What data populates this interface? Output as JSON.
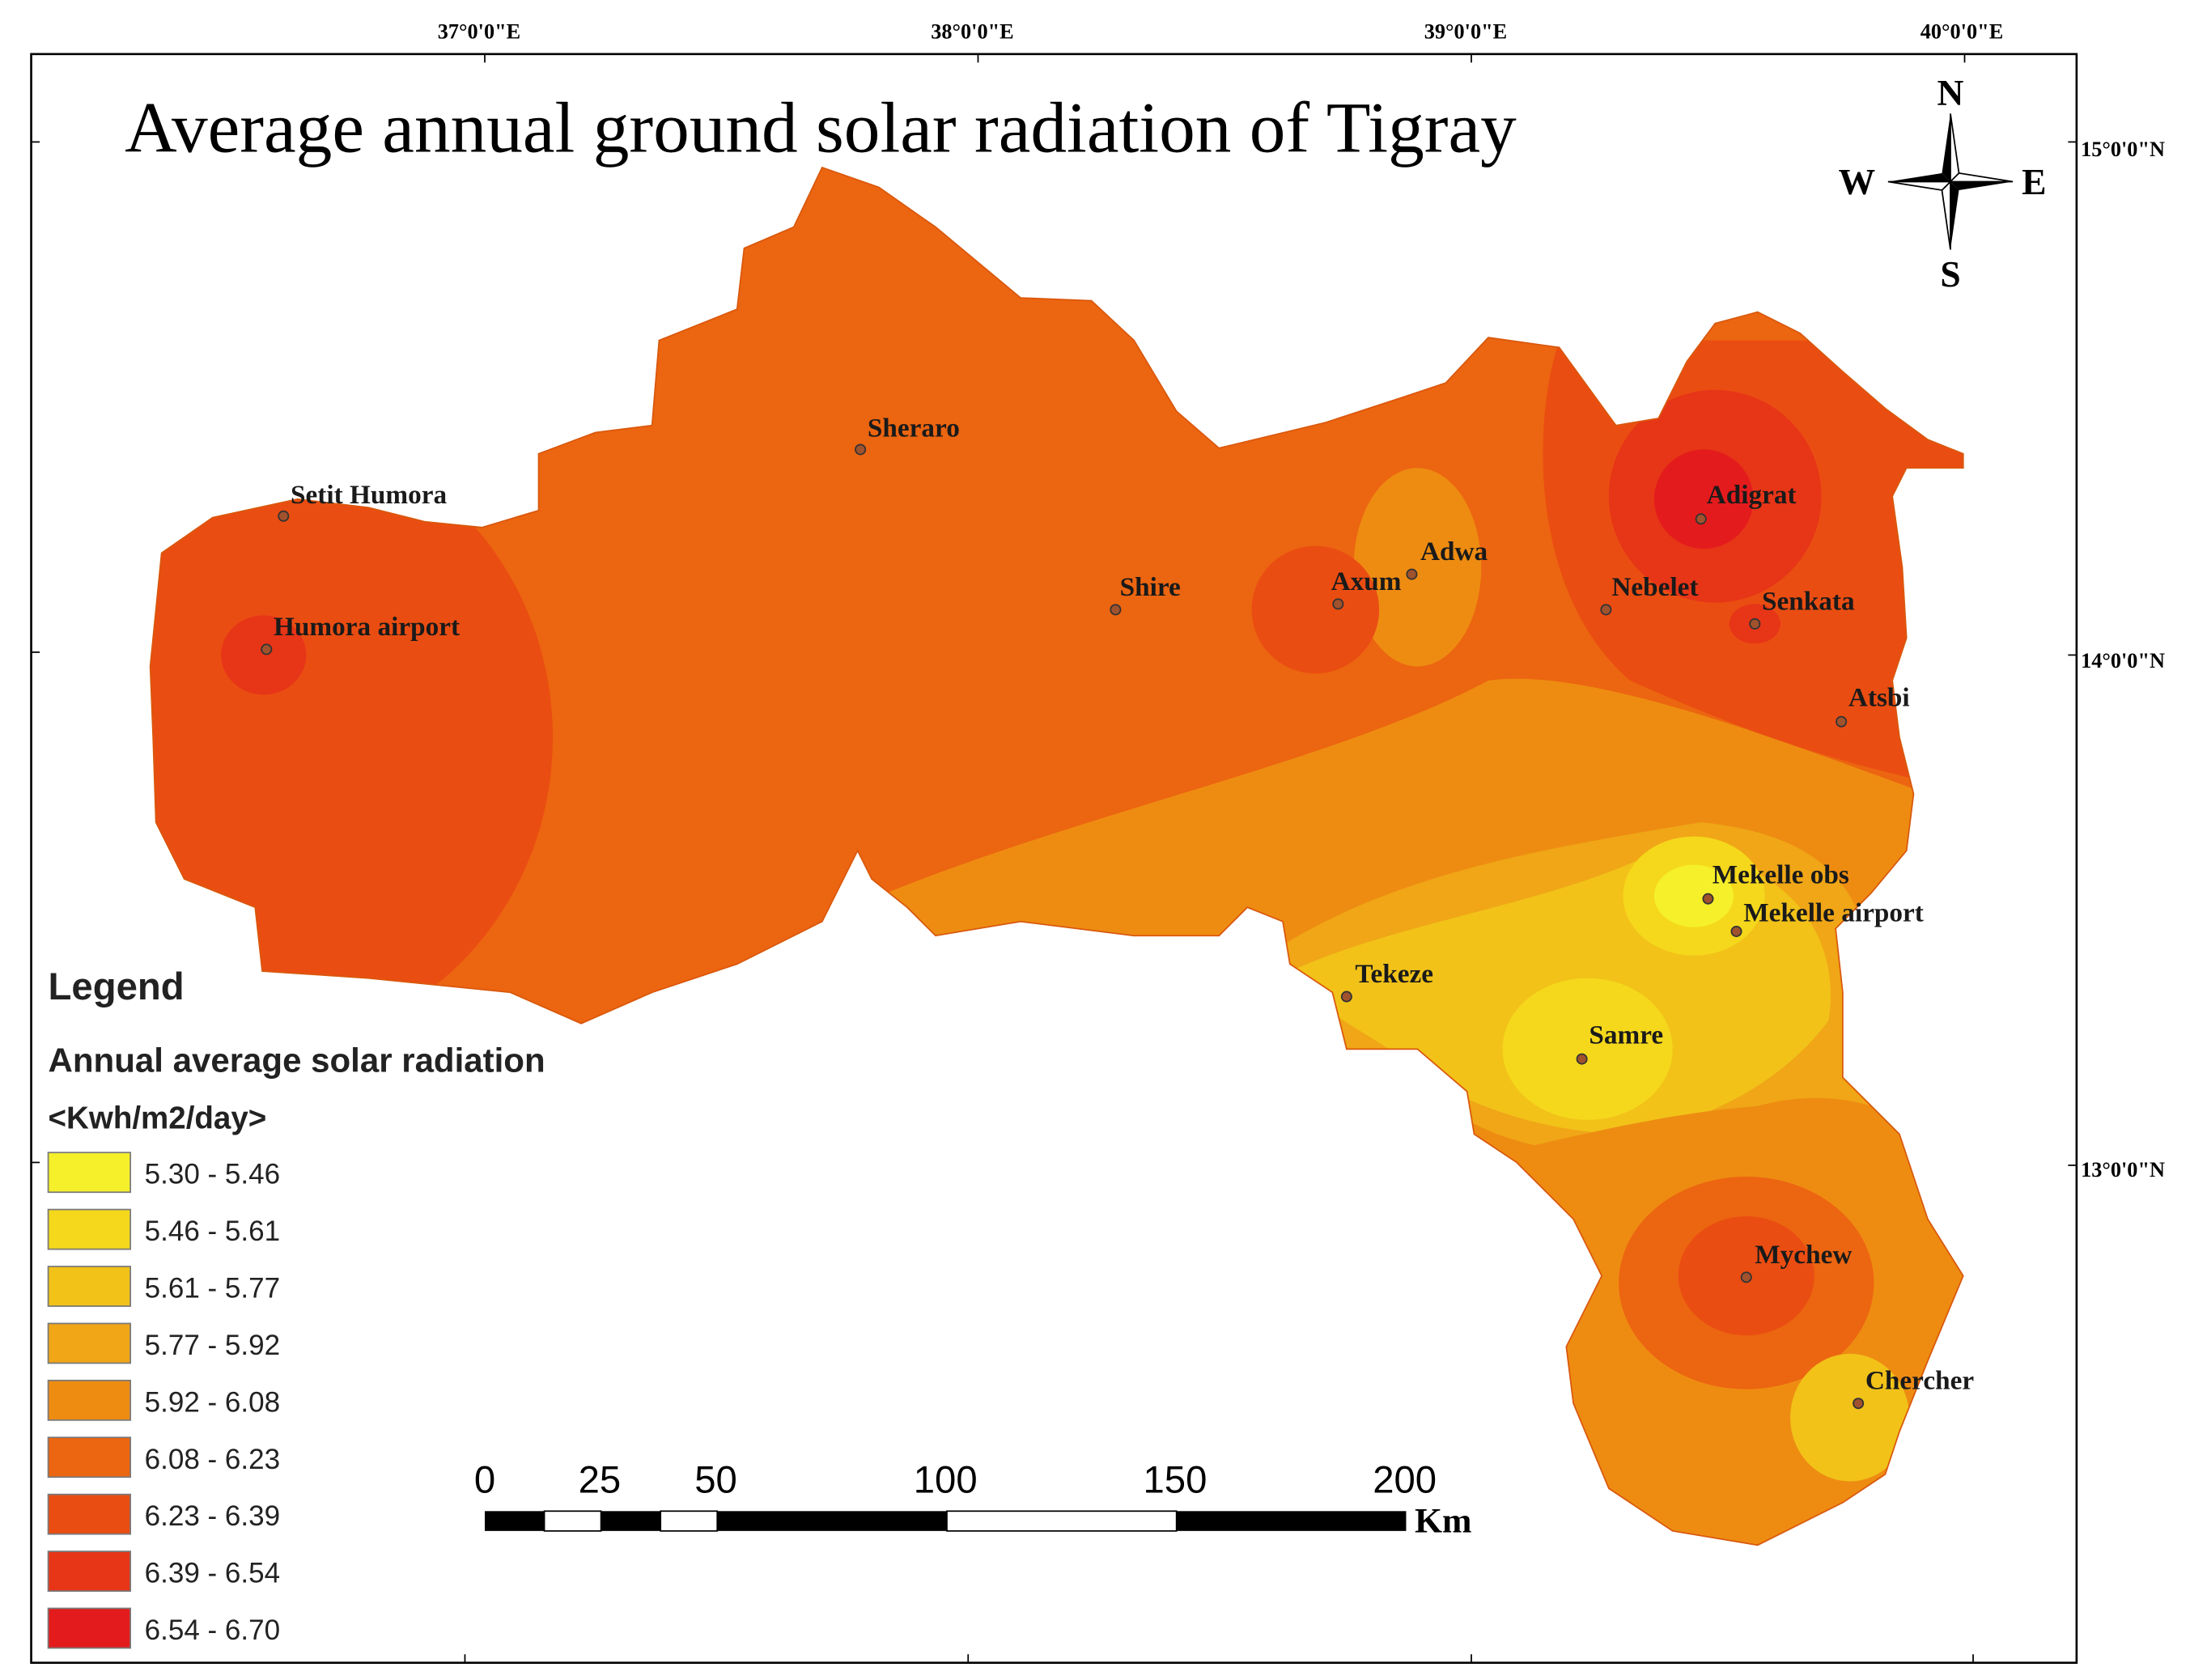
{
  "map": {
    "title": "Average annual ground solar radiation of Tigray",
    "top_ticks": [
      {
        "label": "37°0'0\"E"
      },
      {
        "label": "38°0'0\"E"
      },
      {
        "label": "39°0'0\"E"
      },
      {
        "label": "40°0'0\"E"
      }
    ],
    "right_ticks": [
      {
        "label": "15°0'0\"N"
      },
      {
        "label": "14°0'0\"N"
      },
      {
        "label": "13°0'0\"N"
      }
    ],
    "compass": {
      "n": "N",
      "s": "S",
      "e": "E",
      "w": "W"
    }
  },
  "stations": [
    {
      "name": "Sheraro"
    },
    {
      "name": "Setit Humora"
    },
    {
      "name": "Humora airport"
    },
    {
      "name": "Shire"
    },
    {
      "name": "Axum"
    },
    {
      "name": "Adwa"
    },
    {
      "name": "Adigrat"
    },
    {
      "name": "Nebelet"
    },
    {
      "name": "Senkata"
    },
    {
      "name": "Atsbi"
    },
    {
      "name": "Mekelle obs"
    },
    {
      "name": "Mekelle airport"
    },
    {
      "name": "Tekeze"
    },
    {
      "name": "Samre"
    },
    {
      "name": "Mychew"
    },
    {
      "name": "Chercher"
    }
  ],
  "legend": {
    "title": "Legend",
    "subtitle": "Annual average solar radiation",
    "unit": "<Kwh/m2/day>",
    "classes": [
      {
        "label": "5.30 - 5.46",
        "color": "#f5f02a"
      },
      {
        "label": "5.46 - 5.61",
        "color": "#f5d81c"
      },
      {
        "label": "5.61 - 5.77",
        "color": "#f2c219"
      },
      {
        "label": "5.77 - 5.92",
        "color": "#f0a616"
      },
      {
        "label": "5.92 - 6.08",
        "color": "#ee8c12"
      },
      {
        "label": "6.08 - 6.23",
        "color": "#ec6510"
      },
      {
        "label": "6.23 - 6.39",
        "color": "#ea4d12"
      },
      {
        "label": "6.39 - 6.54",
        "color": "#e73517"
      },
      {
        "label": "6.54 - 6.70",
        "color": "#e41b1c"
      }
    ]
  },
  "scalebar": {
    "labels": [
      "0",
      "25",
      "50",
      "100",
      "150",
      "200"
    ],
    "unit": "Km"
  }
}
